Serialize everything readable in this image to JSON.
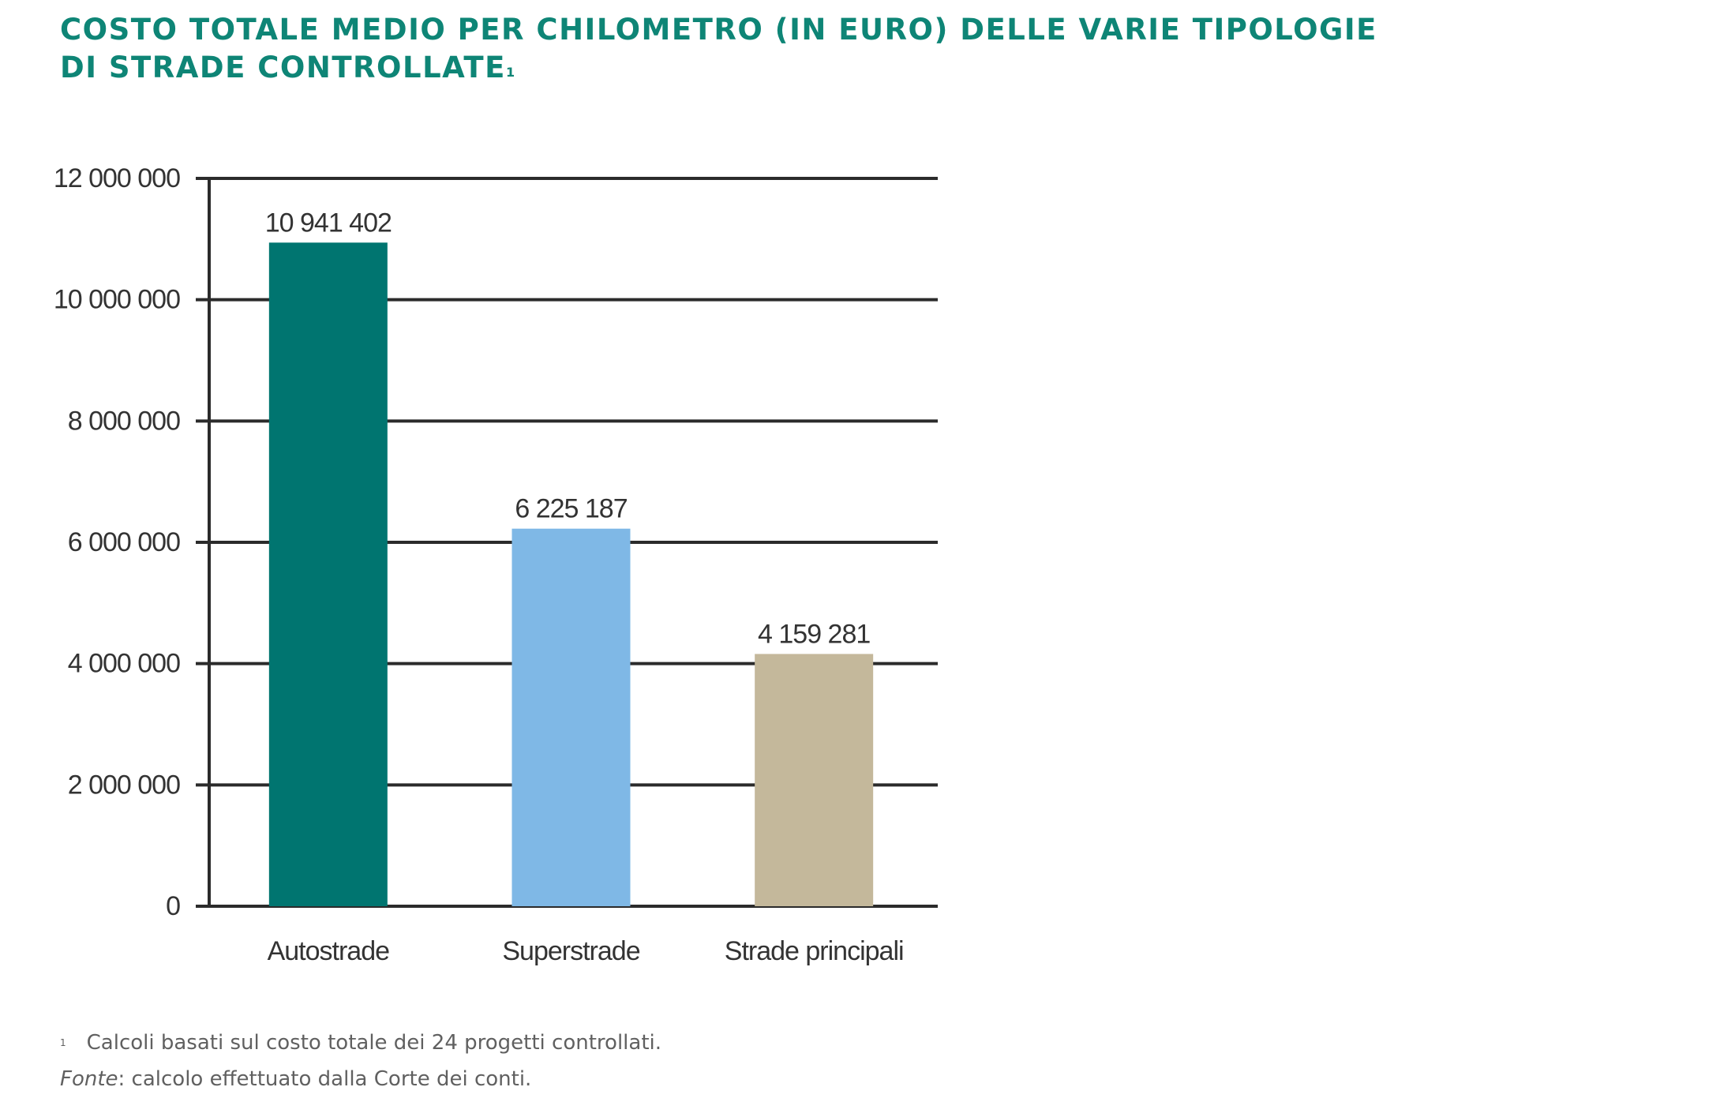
{
  "title_line1": "COSTO TOTALE MEDIO PER CHILOMETRO (IN EURO) DELLE VARIE TIPOLOGIE",
  "title_line2": "DI STRADE CONTROLLATE",
  "title_footnote_mark": "1",
  "footnote": {
    "mark": "1",
    "text": "Calcoli basati sul costo totale dei 24 progetti controllati."
  },
  "source": {
    "label": "Fonte",
    "text": ": calcolo effettuato dalla Corte dei conti."
  },
  "colors": {
    "title": "#0e8576",
    "grid": "#2b2b2b",
    "text": "#333333",
    "footnote": "#606060"
  },
  "chart_data": {
    "type": "bar",
    "categories": [
      "Autostrade",
      "Superstrade",
      "Strade principali"
    ],
    "values": [
      10941402,
      6225187,
      4159281
    ],
    "value_labels": [
      "10 941 402",
      "6 225 187",
      "4 159 281"
    ],
    "bar_colors": [
      "#007570",
      "#7fb8e6",
      "#c4b89b"
    ],
    "yticks": [
      0,
      2000000,
      4000000,
      6000000,
      8000000,
      10000000,
      12000000
    ],
    "ytick_labels": [
      "0",
      "2 000 000",
      "4 000 000",
      "6 000 000",
      "8 000 000",
      "10 000 000",
      "12 000 000"
    ],
    "ylim": [
      0,
      12000000
    ],
    "grid": true,
    "legend": false
  }
}
